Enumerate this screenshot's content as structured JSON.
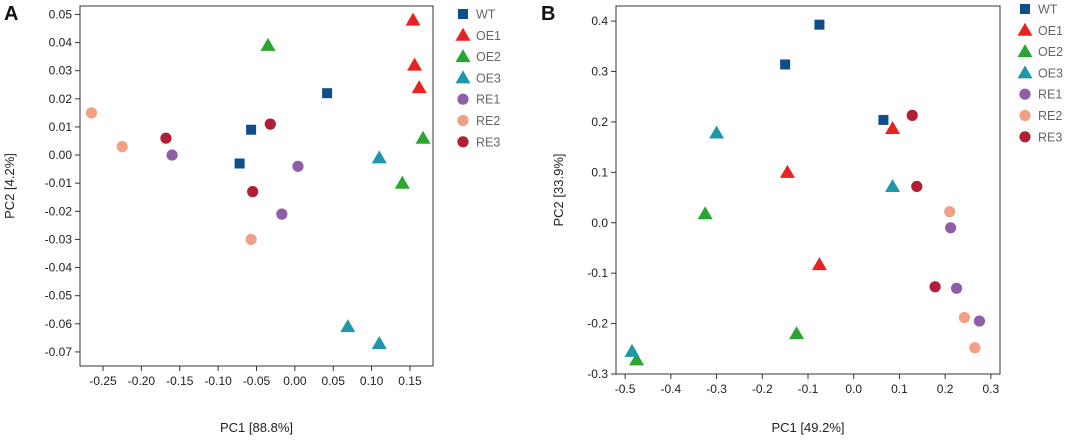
{
  "colors": {
    "WT": "#0e4f8b",
    "OE1": "#e8231f",
    "OE2": "#2aa532",
    "OE3": "#1f97a8",
    "RE1": "#8e5ea6",
    "RE2": "#f2a085",
    "RE3": "#b01f34"
  },
  "legend": [
    {
      "label": "WT",
      "shape": "square"
    },
    {
      "label": "OE1",
      "shape": "triangle"
    },
    {
      "label": "OE2",
      "shape": "triangle"
    },
    {
      "label": "OE3",
      "shape": "triangle"
    },
    {
      "label": "RE1",
      "shape": "circle"
    },
    {
      "label": "RE2",
      "shape": "circle"
    },
    {
      "label": "RE3",
      "shape": "circle"
    }
  ],
  "chart_data": [
    {
      "panel_label": "A",
      "type": "scatter",
      "xlabel": "PC1 [88.8%]",
      "ylabel": "PC2 [4.2%]",
      "xlim": [
        -0.28,
        0.18
      ],
      "ylim": [
        -0.075,
        0.053
      ],
      "xticks": [
        -0.25,
        -0.2,
        -0.15,
        -0.1,
        -0.05,
        0,
        0.05,
        0.1,
        0.15
      ],
      "xtick_labels": [
        "-0.25",
        "-0.20",
        "-0.15",
        "-0.10",
        "-0.05",
        "0.00",
        "0.05",
        "0.10",
        "0.15"
      ],
      "yticks": [
        0.05,
        0.04,
        0.03,
        0.02,
        0.01,
        0,
        -0.01,
        -0.02,
        -0.03,
        -0.04,
        -0.05,
        -0.06,
        -0.07
      ],
      "ytick_labels": [
        "0.05",
        "0.04",
        "0.03",
        "0.02",
        "0.01",
        "0.00",
        "-0.01",
        "-0.02",
        "-0.03",
        "-0.04",
        "-0.05",
        "-0.06",
        "-0.07"
      ],
      "series": [
        {
          "name": "WT",
          "points": [
            [
              0.042,
              0.022
            ],
            [
              -0.057,
              0.009
            ],
            [
              -0.072,
              -0.003
            ]
          ]
        },
        {
          "name": "OE1",
          "points": [
            [
              0.154,
              0.048
            ],
            [
              0.156,
              0.032
            ],
            [
              0.162,
              0.024
            ]
          ]
        },
        {
          "name": "OE2",
          "points": [
            [
              -0.035,
              0.039
            ],
            [
              0.167,
              0.006
            ],
            [
              0.14,
              -0.01
            ]
          ]
        },
        {
          "name": "OE3",
          "points": [
            [
              0.11,
              -0.001
            ],
            [
              0.069,
              -0.061
            ],
            [
              0.11,
              -0.067
            ]
          ]
        },
        {
          "name": "RE1",
          "points": [
            [
              -0.16,
              0.0
            ],
            [
              0.004,
              -0.004
            ],
            [
              -0.017,
              -0.021
            ]
          ]
        },
        {
          "name": "RE2",
          "points": [
            [
              -0.265,
              0.015
            ],
            [
              -0.225,
              0.003
            ],
            [
              -0.057,
              -0.03
            ]
          ]
        },
        {
          "name": "RE3",
          "points": [
            [
              -0.168,
              0.006
            ],
            [
              -0.032,
              0.011
            ],
            [
              -0.055,
              -0.013
            ]
          ]
        }
      ]
    },
    {
      "panel_label": "B",
      "type": "scatter",
      "xlabel": "PC1 [49.2%]",
      "ylabel": "PC2 [33.9%]",
      "xlim": [
        -0.52,
        0.32
      ],
      "ylim": [
        -0.3,
        0.43
      ],
      "xticks": [
        -0.5,
        -0.4,
        -0.3,
        -0.2,
        -0.1,
        0,
        0.1,
        0.2,
        0.3
      ],
      "xtick_labels": [
        "-0.5",
        "-0.4",
        "-0.3",
        "-0.2",
        "-0.1",
        "0.0",
        "0.1",
        "0.2",
        "0.3"
      ],
      "yticks": [
        0.4,
        0.3,
        0.2,
        0.1,
        0,
        -0.1,
        -0.2,
        -0.3
      ],
      "ytick_labels": [
        "0.4",
        "0.3",
        "0.2",
        "0.1",
        "0.0",
        "-0.1",
        "-0.2",
        "-0.3"
      ],
      "series": [
        {
          "name": "WT",
          "points": [
            [
              -0.075,
              0.393
            ],
            [
              -0.15,
              0.314
            ],
            [
              0.065,
              0.204
            ]
          ]
        },
        {
          "name": "OE1",
          "points": [
            [
              0.085,
              0.187
            ],
            [
              -0.145,
              0.1
            ],
            [
              -0.075,
              -0.083
            ]
          ]
        },
        {
          "name": "OE2",
          "points": [
            [
              -0.325,
              0.018
            ],
            [
              -0.125,
              -0.22
            ],
            [
              -0.475,
              -0.272
            ]
          ]
        },
        {
          "name": "OE3",
          "points": [
            [
              -0.3,
              0.178
            ],
            [
              0.085,
              0.072
            ],
            [
              -0.485,
              -0.255
            ]
          ]
        },
        {
          "name": "RE1",
          "points": [
            [
              0.212,
              -0.01
            ],
            [
              0.225,
              -0.13
            ],
            [
              0.275,
              -0.195
            ]
          ]
        },
        {
          "name": "RE2",
          "points": [
            [
              0.21,
              0.022
            ],
            [
              0.242,
              -0.188
            ],
            [
              0.265,
              -0.248
            ]
          ]
        },
        {
          "name": "RE3",
          "points": [
            [
              0.128,
              0.213
            ],
            [
              0.138,
              0.072
            ],
            [
              0.178,
              -0.127
            ]
          ]
        }
      ]
    }
  ]
}
